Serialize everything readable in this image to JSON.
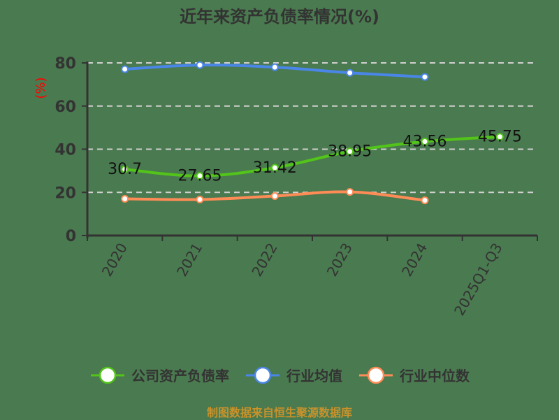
{
  "title": "近年来资产负债率情况(%)",
  "footer": "制图数据来自恒生聚源数据库",
  "colors": {
    "background": "#4a7a4f",
    "company": "#52c41a",
    "industry_avg": "#4a86e8",
    "industry_median": "#ff8c57",
    "axis": "#333333",
    "grid": "#d0d0d0",
    "ylabel": "#ff0000",
    "footer": "#c9922b"
  },
  "chart_data": {
    "type": "line",
    "title": "近年来资产负债率情况(%)",
    "xlabel": "",
    "ylabel": "(%)",
    "categories": [
      "2020",
      "2021",
      "2022",
      "2023",
      "2024",
      "2025Q1-Q3"
    ],
    "ylim": [
      0,
      80
    ],
    "yticks": [
      0,
      20,
      40,
      60,
      80
    ],
    "grid": true,
    "legend_position": "bottom",
    "series": [
      {
        "name": "公司资产负债率",
        "values": [
          30.7,
          27.65,
          31.42,
          38.95,
          43.56,
          45.75
        ],
        "labels_shown": true
      },
      {
        "name": "行业均值",
        "values": [
          77.1,
          79.0,
          78.0,
          75.4,
          73.5,
          null
        ],
        "labels_shown": false
      },
      {
        "name": "行业中位数",
        "values": [
          17.0,
          16.7,
          18.3,
          20.2,
          16.3,
          null
        ],
        "labels_shown": false
      }
    ]
  },
  "legend": [
    {
      "label": "公司资产负债率",
      "color_key": "company"
    },
    {
      "label": "行业均值",
      "color_key": "industry_avg"
    },
    {
      "label": "行业中位数",
      "color_key": "industry_median"
    }
  ]
}
